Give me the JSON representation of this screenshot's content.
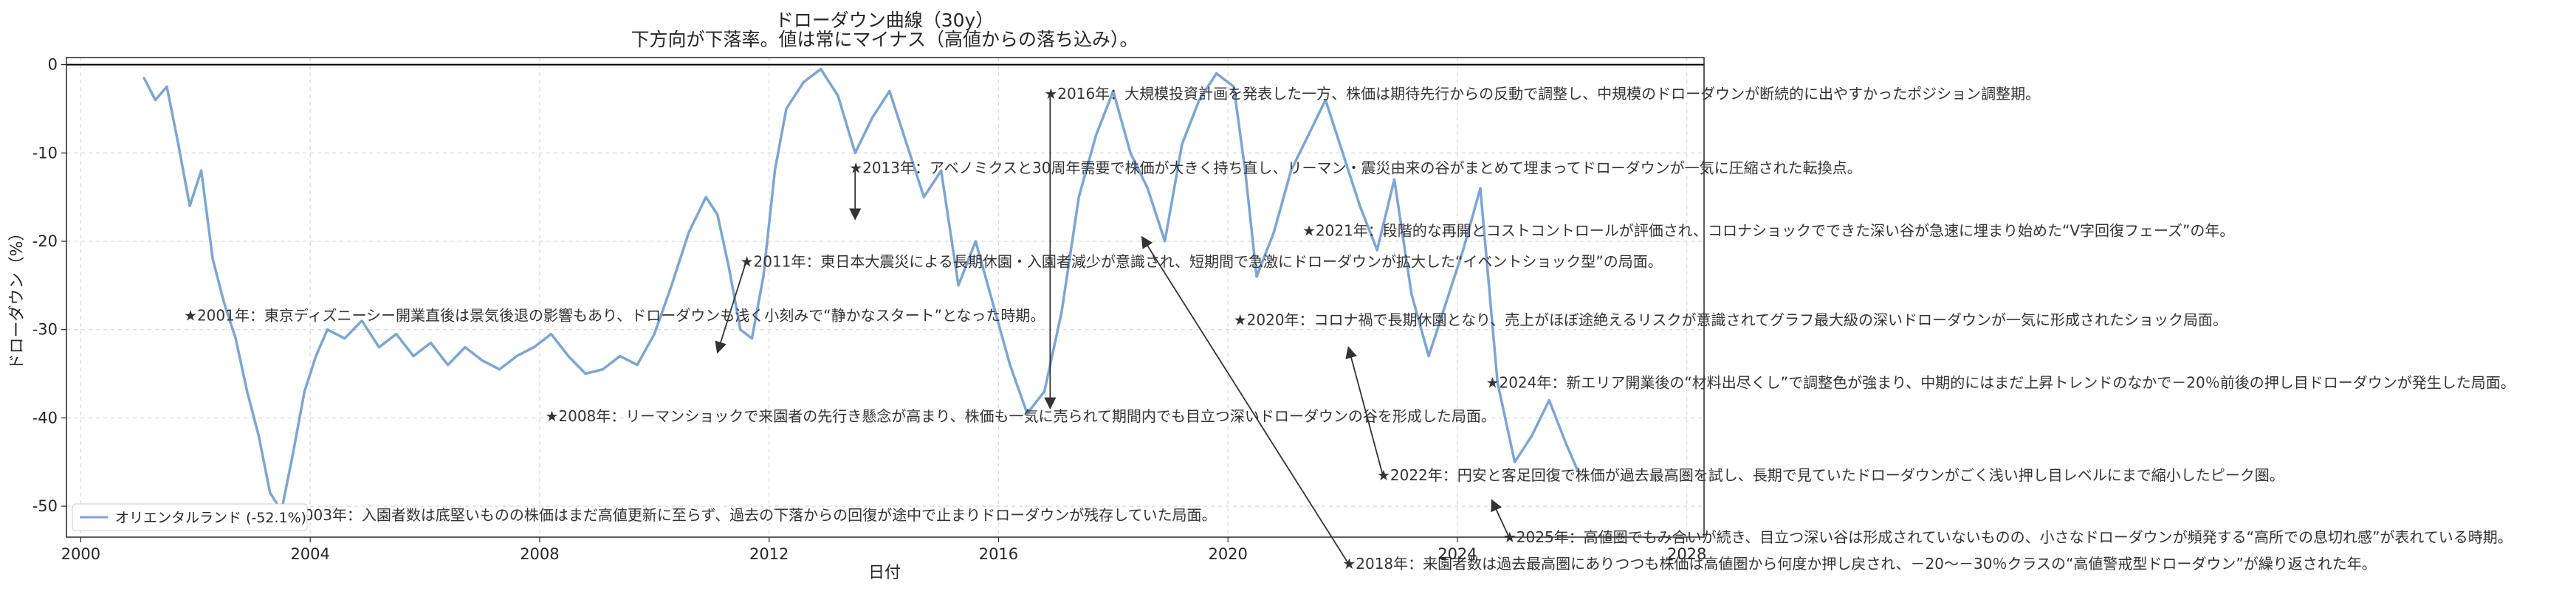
{
  "chart_data": {
    "type": "line",
    "title": "ドローダウン曲線（30y）",
    "subtitle": "下方向が下落率。値は常にマイナス（高値からの落ち込み）。",
    "xlabel": "日付",
    "ylabel": "ドローダウン（%）",
    "xlim": [
      1999.75,
      2028.3
    ],
    "ylim": [
      -53.5,
      0.8
    ],
    "x_ticks": [
      2000,
      2004,
      2008,
      2012,
      2016,
      2020,
      2024,
      2028
    ],
    "y_ticks": [
      0,
      -10,
      -20,
      -30,
      -40,
      -50
    ],
    "grid": true,
    "legend_position": "lower-left",
    "zero_line": true,
    "series": [
      {
        "name": "オリエンタルランド (-52.1%)",
        "color": "#7aa6d6",
        "x": [
          2001.1,
          2001.3,
          2001.5,
          2001.7,
          2001.9,
          2002.1,
          2002.3,
          2002.5,
          2002.7,
          2002.9,
          2003.1,
          2003.3,
          2003.5,
          2003.7,
          2003.9,
          2004.1,
          2004.3,
          2004.6,
          2004.9,
          2005.2,
          2005.5,
          2005.8,
          2006.1,
          2006.4,
          2006.7,
          2007.0,
          2007.3,
          2007.6,
          2007.9,
          2008.2,
          2008.5,
          2008.8,
          2009.1,
          2009.4,
          2009.7,
          2010.0,
          2010.3,
          2010.6,
          2010.9,
          2011.1,
          2011.3,
          2011.5,
          2011.7,
          2011.9,
          2012.1,
          2012.3,
          2012.6,
          2012.9,
          2013.2,
          2013.5,
          2013.8,
          2014.1,
          2014.4,
          2014.7,
          2015.0,
          2015.3,
          2015.6,
          2015.9,
          2016.2,
          2016.5,
          2016.8,
          2017.1,
          2017.4,
          2017.7,
          2018.0,
          2018.3,
          2018.6,
          2018.9,
          2019.2,
          2019.5,
          2019.8,
          2020.1,
          2020.3,
          2020.5,
          2020.8,
          2021.1,
          2021.4,
          2021.7,
          2022.0,
          2022.3,
          2022.6,
          2022.9,
          2023.2,
          2023.5,
          2023.8,
          2024.1,
          2024.4,
          2024.7,
          2025.0,
          2025.3,
          2025.6,
          2025.9,
          2026.1
        ],
        "values": [
          -1.5,
          -4.0,
          -2.5,
          -9.0,
          -16.0,
          -12.0,
          -22.0,
          -27.0,
          -31.0,
          -37.0,
          -42.0,
          -48.5,
          -50.5,
          -44.0,
          -37.0,
          -33.0,
          -30.0,
          -31.0,
          -29.0,
          -32.0,
          -30.5,
          -33.0,
          -31.5,
          -34.0,
          -32.0,
          -33.5,
          -34.5,
          -33.0,
          -32.0,
          -30.5,
          -33.0,
          -35.0,
          -34.5,
          -33.0,
          -34.0,
          -30.5,
          -25.0,
          -19.0,
          -15.0,
          -17.0,
          -23.0,
          -30.0,
          -31.0,
          -24.0,
          -12.0,
          -5.0,
          -2.0,
          -0.5,
          -3.5,
          -10.0,
          -6.0,
          -3.0,
          -9.0,
          -15.0,
          -12.0,
          -25.0,
          -20.0,
          -27.0,
          -34.0,
          -39.5,
          -37.0,
          -28.0,
          -15.0,
          -8.0,
          -3.0,
          -10.0,
          -14.0,
          -20.0,
          -9.0,
          -4.0,
          -1.0,
          -2.5,
          -12.0,
          -24.0,
          -19.0,
          -12.0,
          -8.0,
          -4.0,
          -10.0,
          -16.0,
          -21.0,
          -13.0,
          -26.0,
          -33.0,
          -27.0,
          -21.0,
          -14.0,
          -36.0,
          -45.0,
          -42.0,
          -38.0,
          -43.0,
          -46.0
        ]
      }
    ],
    "annotations": [
      {
        "label": "★2016年：大規模投資計画を発表した一方、株価は期待先行からの反動で調整し、中規模のドローダウンが断続的に出やすかったポジション調整期。",
        "x": 2016.9,
        "y": -3.3,
        "tx": 2017.25,
        "ty": -3.3,
        "ax": 2016.9,
        "ay": -38.9
      },
      {
        "label": "★2013年：アベノミクスと30周年需要で株価が大きく持ち直し、リーマン・震災由来の谷がまとめて埋まってドローダウンが一気に圧縮された転換点。",
        "x": 2013.5,
        "y": -11.7,
        "tx": 2013.8,
        "ty": -11.7,
        "ax": 2013.5,
        "ay": -17.5
      },
      {
        "label": "★2021年：段階的な再開とコストコントロールが評価され、コロナショックでできた深い谷が急速に埋まり始めた“V字回復フェーズ”の年。",
        "x": 2021.4,
        "y": -18.8,
        "tx": 2021.7,
        "ty": -18.8,
        "ax": 2021.4,
        "ay": -18.8
      },
      {
        "label": "★2011年：東日本大震災による長期休園・入園者減少が意識され、短期間で急激にドローダウンが拡大した“イベントショック型”の局面。",
        "x": 2011.6,
        "y": -22.3,
        "tx": 2011.9,
        "ty": -22.3,
        "ax": 2011.1,
        "ay": -32.6
      },
      {
        "label": "★2001年：東京ディズニーシー開業直後は景気後退の影響もあり、ドローダウンも浅く小刻みで“静かなスタート”となった時期。",
        "x": 2001.9,
        "y": -28.4,
        "tx": 2002.2,
        "ty": -28.4,
        "ax": 2001.9,
        "ay": -28.4
      },
      {
        "label": "★2020年：コロナ禍で長期休園となり、売上がほぼ途絶えるリスクが意識されてグラフ最大級の深いドローダウンが一気に形成されたショック局面。",
        "x": 2020.2,
        "y": -28.9,
        "tx": 2020.5,
        "ty": -28.9,
        "ax": 2020.2,
        "ay": -28.9
      },
      {
        "label": "★2024年：新エリア開業後の“材料出尽くし”で調整色が強まり、中期的にはまだ上昇トレンドのなかで－20％前後の押し目ドローダウンが発生した局面。",
        "x": 2024.6,
        "y": -36.0,
        "tx": 2024.9,
        "ty": -36.0,
        "ax": 2024.6,
        "ay": -36.0
      },
      {
        "label": "★2008年：リーマンショックで来園者の先行き懸念が高まり、株価も一気に売られて期間内でも目立つ深いドローダウンの谷を形成した局面。",
        "x": 2008.2,
        "y": -39.8,
        "tx": 2008.5,
        "ty": -39.8,
        "ax": 2008.2,
        "ay": -39.8
      },
      {
        "label": "★2022年：円安と客足回復で株価が過去最高圏を試し、長期で見ていたドローダウンがごく浅い押し目レベルにまで縮小したピーク圏。",
        "x": 2022.7,
        "y": -46.5,
        "tx": 2023.0,
        "ty": -46.5,
        "ax": 2022.1,
        "ay": -32.0
      },
      {
        "label": "★2003年：入園者数は底堅いものの株価はまだ高値更新に至らず、過去の下落からの回復が途中で止まりドローダウンが残存していた局面。",
        "x": 2003.6,
        "y": -51.0,
        "tx": 2003.9,
        "ty": -51.0,
        "ax": 2003.6,
        "ay": -51.0
      },
      {
        "label": "★2025年：高値圏でもみ合いが続き、目立つ深い谷は形成されていないものの、小さなドローダウンが頻発する“高所での息切れ感”が表れている時期。",
        "x": 2024.9,
        "y": -53.5,
        "tx": 2025.2,
        "ty": -53.5,
        "ax": 2024.6,
        "ay": -49.3
      },
      {
        "label": "★2018年：来園者数は過去最高圏にありつつも株価は高値圏から何度か押し戻され、－20～－30％クラスの“高値警戒型ドローダウン”が繰り返された年。",
        "x": 2022.1,
        "y": -56.5,
        "tx": 2022.4,
        "ty": -56.5,
        "ax": 2018.5,
        "ay": -19.5
      }
    ]
  }
}
